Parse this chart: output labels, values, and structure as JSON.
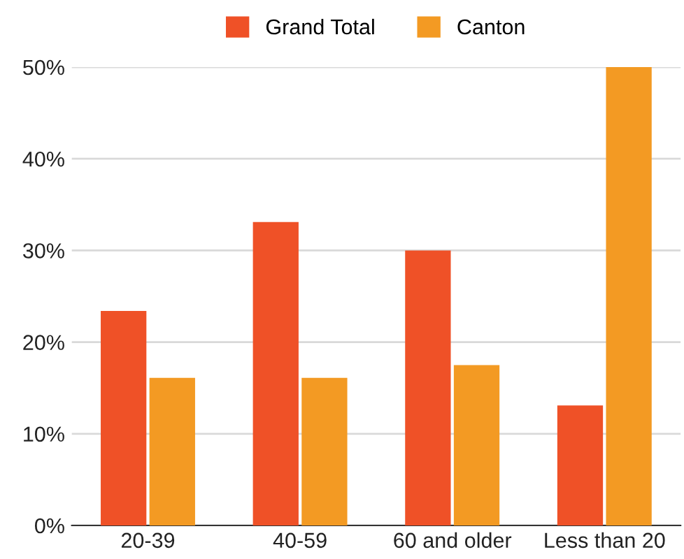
{
  "chart_data": {
    "type": "bar",
    "categories": [
      "20-39",
      "40-59",
      "60 and older",
      "Less than 20"
    ],
    "series": [
      {
        "name": "Grand Total",
        "color": "#ef5127",
        "values": [
          23.4,
          33.1,
          30,
          13.1
        ]
      },
      {
        "name": "Canton",
        "color": "#f39a23",
        "values": [
          16.1,
          16.1,
          17.5,
          50
        ]
      }
    ],
    "ylim": [
      0,
      50
    ],
    "yticks": [
      {
        "value": 0,
        "label": "0%"
      },
      {
        "value": 10,
        "label": "10%"
      },
      {
        "value": 20,
        "label": "20%"
      },
      {
        "value": 30,
        "label": "30%"
      },
      {
        "value": 40,
        "label": "40%"
      },
      {
        "value": 50,
        "label": "50%"
      }
    ],
    "grid": "y",
    "legend": "top"
  }
}
